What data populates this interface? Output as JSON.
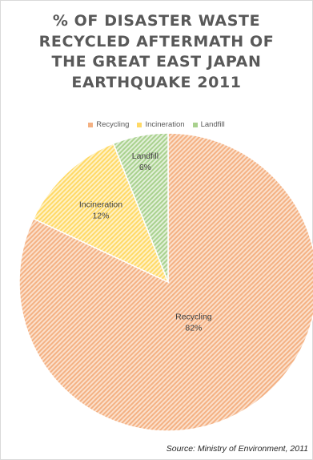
{
  "chart_data": {
    "type": "pie",
    "title_lines": [
      "% OF DISASTER WASTE",
      "RECYCLED AFTERMATH OF",
      "THE GREAT EAST JAPAN",
      "EARTHQUAKE 2011"
    ],
    "legend": {
      "placement": "top",
      "entries": [
        "Recycling",
        "Incineration",
        "Landfill"
      ]
    },
    "slices": [
      {
        "label": "Recycling",
        "value": 82,
        "value_label": "82%",
        "color": "#f4b183",
        "hatch": "#fbe0cc"
      },
      {
        "label": "Incineration",
        "value": 12,
        "value_label": "12%",
        "color": "#ffd966",
        "hatch": "#fff2c6"
      },
      {
        "label": "Landfill",
        "value": 6,
        "value_label": "6%",
        "color": "#a9d18e",
        "hatch": "#e2f0d9"
      }
    ],
    "start": "12 o'clock",
    "direction": "clockwise",
    "source": "Source: Ministry of Environment, 2011"
  }
}
